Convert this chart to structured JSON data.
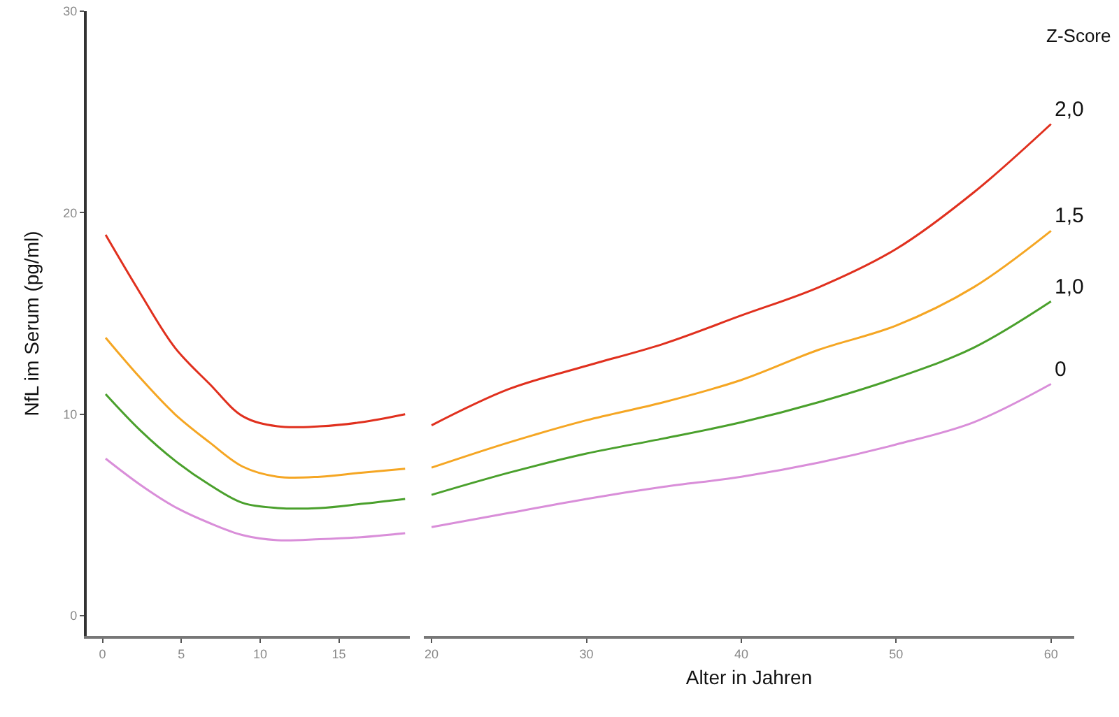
{
  "chart_data": [
    {
      "type": "line",
      "ylabel": "NfL im Serum (pg/ml)",
      "xlim": [
        -1,
        19.5
      ],
      "xticks": [
        0,
        5,
        10,
        15
      ],
      "ylim": [
        -1,
        30
      ],
      "yticks": [
        0,
        10,
        20,
        30
      ],
      "grid": false,
      "x": [
        0.2,
        2.4,
        4.6,
        6.8,
        8.9,
        11.1,
        13.8,
        16.4,
        19.2
      ],
      "series": [
        {
          "color": "#e0301e",
          "values": [
            18.9,
            16,
            13.3,
            11.5,
            9.9,
            9.4,
            9.4,
            9.6,
            10.0
          ]
        },
        {
          "color": "#f5a623",
          "values": [
            13.8,
            11.8,
            10,
            8.6,
            7.4,
            6.9,
            6.9,
            7.1,
            7.3
          ]
        },
        {
          "color": "#4aa02c",
          "values": [
            11.0,
            9.2,
            7.7,
            6.5,
            5.6,
            5.35,
            5.35,
            5.55,
            5.8
          ]
        },
        {
          "color": "#d98ed9",
          "values": [
            7.8,
            6.5,
            5.4,
            4.6,
            4.0,
            3.75,
            3.8,
            3.9,
            4.1
          ]
        }
      ]
    },
    {
      "type": "line",
      "xlabel": "Alter in Jahren",
      "legend_title": "Z-Score",
      "xlim": [
        19.5,
        61.5
      ],
      "xticks": [
        20,
        30,
        40,
        50,
        60
      ],
      "ylim": [
        -1,
        30
      ],
      "tick_labels": "x",
      "grid": false,
      "x": [
        20,
        25,
        30,
        35,
        40,
        45,
        50,
        55,
        60
      ],
      "series": [
        {
          "name": "2,0",
          "color": "#e0301e",
          "values": [
            9.45,
            11.25,
            12.4,
            13.5,
            14.9,
            16.3,
            18.2,
            21.0,
            24.4
          ]
        },
        {
          "name": "1,5",
          "color": "#f5a623",
          "values": [
            7.35,
            8.6,
            9.7,
            10.6,
            11.7,
            13.2,
            14.4,
            16.3,
            19.1
          ]
        },
        {
          "name": "1,0",
          "color": "#4aa02c",
          "values": [
            6.0,
            7.1,
            8.05,
            8.8,
            9.6,
            10.6,
            11.8,
            13.3,
            15.6
          ]
        },
        {
          "name": "0",
          "color": "#d98ed9",
          "values": [
            4.4,
            5.1,
            5.8,
            6.4,
            6.9,
            7.6,
            8.5,
            9.6,
            11.5
          ]
        }
      ]
    }
  ]
}
